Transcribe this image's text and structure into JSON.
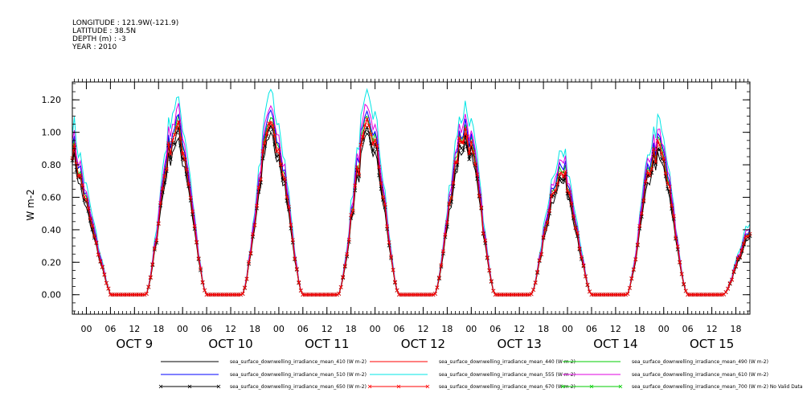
{
  "header": {
    "longitude": "LONGITUDE : 121.9W(-121.9)",
    "latitude": "LATITUDE : 38.5N",
    "depth": "DEPTH (m) : -3",
    "year": "YEAR : 2010"
  },
  "chart_data": {
    "type": "line",
    "ylabel": "W m-2",
    "ylim": [
      -0.12,
      1.31
    ],
    "yticks": [
      0.0,
      0.2,
      0.4,
      0.6,
      0.8,
      1.0,
      1.2
    ],
    "ytick_labels": [
      "0.00",
      "0.20",
      "0.40",
      "0.60",
      "0.80",
      "1.00",
      "1.20"
    ],
    "x_units": "hours since 2010-10-08 00:00",
    "xlim": [
      20.5,
      189.5
    ],
    "xticks_hours": [
      24,
      30,
      36,
      42,
      48,
      54,
      60,
      66,
      72,
      78,
      84,
      90,
      96,
      102,
      108,
      114,
      120,
      126,
      132,
      138,
      144,
      150,
      156,
      162,
      168,
      174,
      180,
      186
    ],
    "xtick_labels": [
      "00",
      "06",
      "12",
      "18",
      "00",
      "06",
      "12",
      "18",
      "00",
      "06",
      "12",
      "18",
      "00",
      "06",
      "12",
      "18",
      "00",
      "06",
      "12",
      "18",
      "00",
      "06",
      "12",
      "18",
      "00",
      "06",
      "12",
      "18"
    ],
    "day_labels": [
      {
        "hour": 36,
        "text": "OCT  9"
      },
      {
        "hour": 60,
        "text": "OCT 10"
      },
      {
        "hour": 84,
        "text": "OCT 11"
      },
      {
        "hour": 108,
        "text": "OCT 12"
      },
      {
        "hour": 132,
        "text": "OCT 13"
      },
      {
        "hour": 156,
        "text": "OCT 14"
      },
      {
        "hour": 180,
        "text": "OCT 15"
      }
    ],
    "sample_step_hours": 0.5,
    "noise_seed": 7,
    "days": [
      {
        "rise": 5.5,
        "set": 30.0,
        "peak": 20.0,
        "amp": 1.0,
        "start": 20.5,
        "start_level": 0.93
      },
      {
        "rise": 38.8,
        "set": 54.0,
        "peak": 43.0,
        "amp": 1.0
      },
      {
        "rise": 62.8,
        "set": 78.0,
        "peak": 67.0,
        "amp": 1.01
      },
      {
        "rise": 86.8,
        "set": 102.0,
        "peak": 91.0,
        "amp": 1.0
      },
      {
        "rise": 110.8,
        "set": 126.0,
        "peak": 115.0,
        "amp": 0.98
      },
      {
        "rise": 134.8,
        "set": 150.0,
        "peak": 139.0,
        "amp": 0.74
      },
      {
        "rise": 158.8,
        "set": 174.0,
        "peak": 163.0,
        "amp": 0.88
      },
      {
        "rise": 182.8,
        "set": 198.0,
        "peak": 187.0,
        "amp": 0.38,
        "end": 189.5
      }
    ],
    "series": [
      {
        "name": "sea_surface_downwelling_irradiance_mean_410 (W m-2)",
        "color": "#000000",
        "scale": 0.93,
        "marker": "none"
      },
      {
        "name": "sea_surface_downwelling_irradiance_mean_440 (W m-2)",
        "color": "#ff0000",
        "scale": 1.0,
        "marker": "none"
      },
      {
        "name": "sea_surface_downwelling_irradiance_mean_490 (W m-2)",
        "color": "#00cc00",
        "scale": 1.03,
        "marker": "none"
      },
      {
        "name": "sea_surface_downwelling_irradiance_mean_510 (W m-2)",
        "color": "#0000ff",
        "scale": 1.06,
        "marker": "none"
      },
      {
        "name": "sea_surface_downwelling_irradiance_mean_555 (W m-2)",
        "color": "#00e5e5",
        "scale": 1.17,
        "marker": "none"
      },
      {
        "name": "sea_surface_downwelling_irradiance_mean_610 (W m-2)",
        "color": "#e000e0",
        "scale": 1.1,
        "marker": "none"
      },
      {
        "name": "sea_surface_downwelling_irradiance_mean_650 (W m-2)",
        "color": "#000000",
        "scale": 0.97,
        "marker": "x"
      },
      {
        "name": "sea_surface_downwelling_irradiance_mean_670 (W m-2)",
        "color": "#ff0000",
        "scale": 1.0,
        "marker": "x"
      },
      {
        "name": "sea_surface_downwelling_irradiance_mean_700 (W m-2) No Valid Data",
        "color": "#00cc00",
        "scale": 0,
        "marker": "x"
      }
    ],
    "grid": false,
    "legend": "bottom"
  }
}
